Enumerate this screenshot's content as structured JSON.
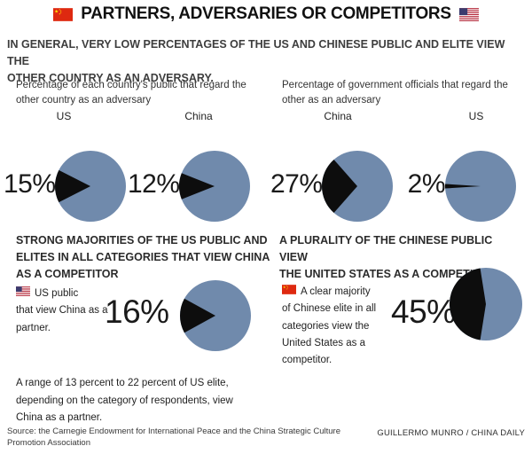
{
  "colors": {
    "pie_blue": "#708aac",
    "pie_black": "#0d0d0d",
    "cn_red": "#de2910",
    "cn_yellow": "#ffde00",
    "us_red": "#b22234",
    "us_blue": "#3c3b6e"
  },
  "icons": {
    "china_flag": "china-flag",
    "us_flag": "us-flag"
  },
  "header": {
    "title": "PARTNERS, ADVERSARIES OR COMPETITORS"
  },
  "intro": "IN GENERAL, VERY LOW PERCENTAGES OF THE US AND CHINESE PUBLIC AND ELITE VIEW THE\nOTHER COUNTRY AS AN ADVERSARY.",
  "adversary_section": {
    "left": {
      "caption": "Percentage of each country's public that regard the\nother country as an adversary",
      "pies": [
        {
          "country": "US",
          "label": "15%",
          "value": 15
        },
        {
          "country": "China",
          "label": "12%",
          "value": 12
        }
      ]
    },
    "right": {
      "caption": "Percentage of government officials that regard the\nother as an adversary",
      "pies": [
        {
          "country": "China",
          "label": "27%",
          "value": 27
        },
        {
          "country": "US",
          "label": "2%",
          "value": 2
        }
      ]
    }
  },
  "competitor_section": {
    "left": {
      "heading": "STRONG MAJORITIES OF THE US PUBLIC AND\nELITES IN ALL CATEGORIES THAT VIEW CHINA\nAS A COMPETITOR",
      "note": "US public\nthat view China as a\npartner.",
      "pie": {
        "label": "16%",
        "value": 16
      },
      "footnote": "A range of 13 percent to 22 percent of US elite,\ndepending on the category of respondents, view\nChina as a partner."
    },
    "right": {
      "heading": "A PLURALITY OF THE CHINESE PUBLIC VIEW\nTHE UNITED STATES AS A COMPETITOR",
      "note": "A clear majority\nof Chinese elite in all\ncategories view the\nUnited States as a\ncompetitor.",
      "pie": {
        "label": "45%",
        "value": 45
      }
    }
  },
  "footer": {
    "source": "Source: the Carnegie Endowment for International Peace and the China Strategic Culture\nPromotion Association",
    "credit": "GUILLERMO MUNRO / CHINA DAILY"
  },
  "chart_data": [
    {
      "type": "pie",
      "title": "Percentage of each country's public that regard the other country as an adversary",
      "series": [
        {
          "name": "US public viewing China as adversary",
          "value_pct": 15,
          "remainder_pct": 85
        },
        {
          "name": "Chinese public viewing US as adversary",
          "value_pct": 12,
          "remainder_pct": 88
        }
      ],
      "slice_color": "#0d0d0d",
      "remainder_color": "#708aac",
      "legend_position": "none"
    },
    {
      "type": "pie",
      "title": "Percentage of government officials that regard the other as an adversary",
      "series": [
        {
          "name": "Chinese officials viewing US as adversary",
          "value_pct": 27,
          "remainder_pct": 73
        },
        {
          "name": "US officials viewing China as adversary",
          "value_pct": 2,
          "remainder_pct": 98
        }
      ],
      "slice_color": "#0d0d0d",
      "remainder_color": "#708aac",
      "legend_position": "none"
    },
    {
      "type": "pie",
      "title": "US public that view China as a partner",
      "series": [
        {
          "name": "US public viewing China as partner",
          "value_pct": 16,
          "remainder_pct": 84
        }
      ],
      "slice_color": "#0d0d0d",
      "remainder_color": "#708aac",
      "legend_position": "none"
    },
    {
      "type": "pie",
      "title": "Chinese public that view the United States as a competitor",
      "series": [
        {
          "name": "Chinese viewing US as competitor",
          "value_pct": 45,
          "remainder_pct": 55
        }
      ],
      "slice_color": "#0d0d0d",
      "remainder_color": "#708aac",
      "legend_position": "none"
    }
  ]
}
